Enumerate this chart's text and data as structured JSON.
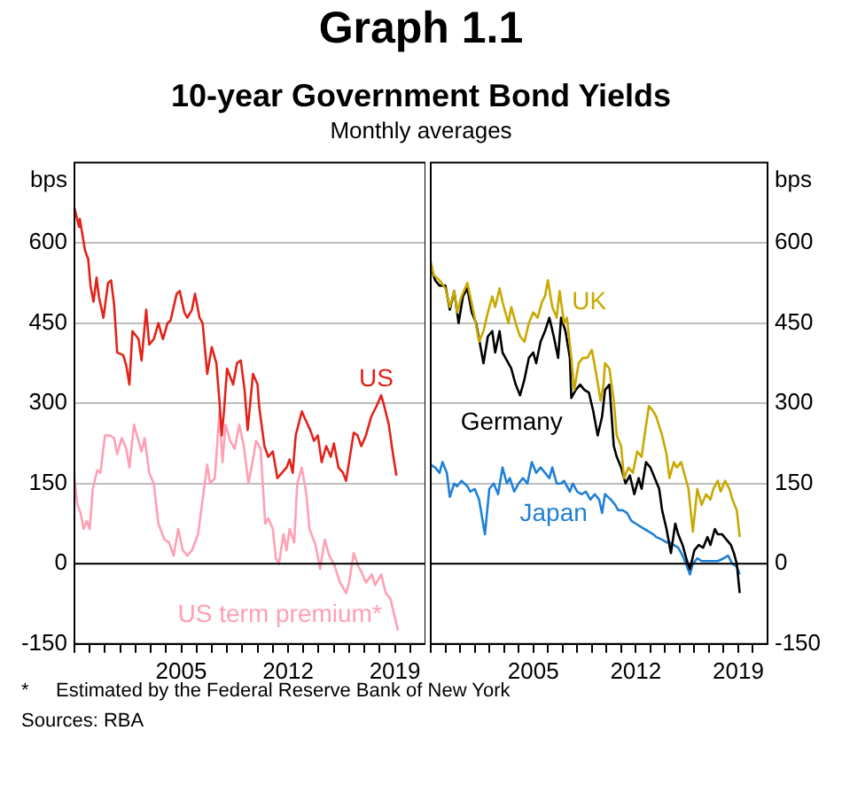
{
  "chart_data": [
    {
      "type": "line",
      "title": "Graph 1.1",
      "subtitle": "10-year Government Bond Yields",
      "ylabel": "bps",
      "xlim": [
        1998,
        2021
      ],
      "ylim": [
        -150,
        750
      ],
      "xticks": [
        {
          "value": 1998,
          "label": null
        },
        {
          "value": 1999,
          "label": null
        },
        {
          "value": 2000,
          "label": null
        },
        {
          "value": 2001,
          "label": null
        },
        {
          "value": 2002,
          "label": null
        },
        {
          "value": 2003,
          "label": null
        },
        {
          "value": 2004,
          "label": null
        },
        2005,
        {
          "value": 2006,
          "label": null
        },
        {
          "value": 2007,
          "label": null
        },
        {
          "value": 2008,
          "label": null
        },
        {
          "value": 2009,
          "label": null
        },
        {
          "value": 2010,
          "label": null
        },
        {
          "value": 2011,
          "label": null
        },
        2012,
        {
          "value": 2013,
          "label": null
        },
        {
          "value": 2014,
          "label": null
        },
        {
          "value": 2015,
          "label": null
        },
        {
          "value": 2016,
          "label": null
        },
        {
          "value": 2017,
          "label": null
        },
        {
          "value": 2018,
          "label": null
        },
        2019,
        {
          "value": 2020,
          "label": null
        }
      ],
      "yticks": [
        -150,
        0,
        150,
        300,
        450,
        600
      ],
      "grid": "y",
      "legend": false,
      "annotations": [
        "Monthly averages",
        "*     Estimated by the Federal Reserve Bank of New York",
        "Sources: RBA"
      ],
      "series": [
        {
          "name": "US",
          "color": "#e2231a",
          "x": [
            1998.0,
            1998.3,
            1998.35,
            1998.7,
            1998.9,
            1999.05,
            1999.25,
            1999.45,
            1999.6,
            1999.9,
            2000.2,
            2000.4,
            2000.6,
            2000.8,
            2001.2,
            2001.4,
            2001.6,
            2001.8,
            2002.2,
            2002.4,
            2002.7,
            2002.9,
            2003.2,
            2003.5,
            2003.8,
            2004.1,
            2004.3,
            2004.7,
            2004.9,
            2005.2,
            2005.4,
            2005.7,
            2005.9,
            2006.2,
            2006.4,
            2006.7,
            2007.0,
            2007.3,
            2007.5,
            2007.65,
            2007.8,
            2008.0,
            2008.4,
            2008.65,
            2008.9,
            2009.15,
            2009.35,
            2009.7,
            2010.0,
            2010.1,
            2010.45,
            2010.7,
            2011.0,
            2011.3,
            2011.6,
            2011.9,
            2012.1,
            2012.3,
            2012.5,
            2012.9,
            2013.05,
            2013.45,
            2013.7,
            2013.95,
            2014.2,
            2014.5,
            2014.8,
            2015.0,
            2015.3,
            2015.6,
            2015.8,
            2016.05,
            2016.3,
            2016.55,
            2016.8,
            2017.1,
            2017.45,
            2017.8,
            2018.1,
            2018.3,
            2018.6,
            2018.9,
            2019.1
          ],
          "values": [
            665,
            630,
            645,
            585,
            570,
            520,
            490,
            535,
            500,
            460,
            525,
            530,
            485,
            395,
            390,
            370,
            335,
            435,
            420,
            380,
            475,
            410,
            420,
            450,
            420,
            450,
            455,
            505,
            510,
            470,
            460,
            475,
            505,
            460,
            450,
            355,
            405,
            375,
            305,
            240,
            285,
            365,
            335,
            375,
            380,
            325,
            250,
            355,
            335,
            295,
            220,
            200,
            210,
            160,
            170,
            180,
            195,
            170,
            240,
            285,
            275,
            250,
            230,
            240,
            190,
            220,
            200,
            225,
            180,
            170,
            155,
            200,
            245,
            240,
            220,
            240,
            275,
            295,
            315,
            295,
            260,
            200,
            165
          ]
        },
        {
          "name": "US term premium*",
          "color": "#ffa0b4",
          "x": [
            1998.0,
            1998.2,
            1998.4,
            1998.6,
            1998.8,
            1999.0,
            1999.2,
            1999.5,
            1999.7,
            2000.0,
            2000.3,
            2000.6,
            2000.8,
            2001.1,
            2001.4,
            2001.6,
            2001.9,
            2002.2,
            2002.4,
            2002.6,
            2002.9,
            2003.2,
            2003.5,
            2003.9,
            2004.2,
            2004.5,
            2004.8,
            2005.1,
            2005.4,
            2005.7,
            2006.1,
            2006.4,
            2006.7,
            2006.9,
            2007.2,
            2007.5,
            2007.7,
            2007.9,
            2008.2,
            2008.5,
            2008.8,
            2009.1,
            2009.4,
            2009.7,
            2009.9,
            2010.2,
            2010.5,
            2010.7,
            2011.0,
            2011.2,
            2011.4,
            2011.7,
            2011.9,
            2012.1,
            2012.4,
            2012.6,
            2012.9,
            2013.2,
            2013.4,
            2013.8,
            2014.1,
            2014.4,
            2014.7,
            2015.0,
            2015.4,
            2015.8,
            2016.0,
            2016.3,
            2016.6,
            2016.8,
            2017.1,
            2017.5,
            2017.7,
            2018.1,
            2018.4,
            2018.7,
            2019.0,
            2019.2
          ],
          "values": [
            160,
            110,
            95,
            65,
            80,
            65,
            140,
            175,
            170,
            240,
            240,
            235,
            205,
            235,
            215,
            180,
            260,
            230,
            210,
            235,
            170,
            150,
            75,
            45,
            40,
            15,
            65,
            25,
            15,
            25,
            55,
            120,
            185,
            150,
            160,
            285,
            190,
            260,
            230,
            215,
            260,
            220,
            150,
            195,
            230,
            215,
            75,
            85,
            65,
            10,
            0,
            55,
            25,
            65,
            40,
            150,
            180,
            130,
            65,
            35,
            -10,
            45,
            15,
            0,
            -35,
            -55,
            -35,
            20,
            -5,
            -15,
            -35,
            -20,
            -40,
            -20,
            -55,
            -65,
            -100,
            -125
          ]
        }
      ]
    },
    {
      "type": "line",
      "ylabel": "bps",
      "xlim": [
        1998,
        2021
      ],
      "ylim": [
        -150,
        750
      ],
      "xticks": [
        {
          "value": 1998,
          "label": null
        },
        {
          "value": 1999,
          "label": null
        },
        {
          "value": 2000,
          "label": null
        },
        {
          "value": 2001,
          "label": null
        },
        {
          "value": 2002,
          "label": null
        },
        {
          "value": 2003,
          "label": null
        },
        {
          "value": 2004,
          "label": null
        },
        2005,
        {
          "value": 2006,
          "label": null
        },
        {
          "value": 2007,
          "label": null
        },
        {
          "value": 2008,
          "label": null
        },
        {
          "value": 2009,
          "label": null
        },
        {
          "value": 2010,
          "label": null
        },
        {
          "value": 2011,
          "label": null
        },
        2012,
        {
          "value": 2013,
          "label": null
        },
        {
          "value": 2014,
          "label": null
        },
        {
          "value": 2015,
          "label": null
        },
        {
          "value": 2016,
          "label": null
        },
        {
          "value": 2017,
          "label": null
        },
        {
          "value": 2018,
          "label": null
        },
        2019,
        {
          "value": 2020,
          "label": null
        }
      ],
      "yticks": [
        -150,
        0,
        150,
        300,
        450,
        600
      ],
      "grid": "y",
      "legend": false,
      "series": [
        {
          "name": "UK",
          "color": "#c9a800",
          "x": [
            1998.0,
            1998.2,
            1998.6,
            1999.0,
            1999.3,
            1999.6,
            1999.8,
            2000.1,
            2000.5,
            2000.7,
            2001.0,
            2001.3,
            2001.6,
            2001.9,
            2002.2,
            2002.4,
            2002.7,
            2002.9,
            2003.3,
            2003.5,
            2003.8,
            2004.1,
            2004.4,
            2004.7,
            2005.0,
            2005.3,
            2005.6,
            2005.8,
            2006.0,
            2006.3,
            2006.6,
            2006.8,
            2007.1,
            2007.3,
            2007.6,
            2007.8,
            2008.1,
            2008.4,
            2008.7,
            2009.0,
            2009.3,
            2009.6,
            2009.8,
            2009.9,
            2010.2,
            2010.5,
            2010.7,
            2011.0,
            2011.2,
            2011.5,
            2011.8,
            2012.1,
            2012.4,
            2012.6,
            2012.9,
            2013.2,
            2013.4,
            2013.8,
            2014.1,
            2014.3,
            2014.6,
            2014.8,
            2015.1,
            2015.4,
            2015.6,
            2015.9,
            2016.2,
            2016.5,
            2016.8,
            2017.1,
            2017.3,
            2017.6,
            2017.8,
            2018.1,
            2018.4,
            2018.6,
            2018.9,
            2019.1
          ],
          "values": [
            565,
            540,
            530,
            515,
            480,
            510,
            470,
            500,
            525,
            500,
            460,
            415,
            435,
            470,
            500,
            480,
            515,
            490,
            450,
            480,
            450,
            425,
            415,
            450,
            470,
            460,
            490,
            500,
            530,
            480,
            460,
            510,
            450,
            460,
            385,
            325,
            375,
            385,
            385,
            400,
            355,
            305,
            335,
            375,
            365,
            305,
            240,
            220,
            160,
            180,
            170,
            210,
            200,
            240,
            295,
            285,
            275,
            240,
            205,
            160,
            190,
            180,
            190,
            160,
            140,
            60,
            140,
            110,
            130,
            120,
            140,
            155,
            135,
            155,
            140,
            120,
            100,
            50
          ]
        },
        {
          "name": "Germany",
          "color": "#000000",
          "x": [
            1998.0,
            1998.3,
            1998.6,
            1999.0,
            1999.3,
            1999.6,
            1999.9,
            2000.2,
            2000.5,
            2000.8,
            2001.1,
            2001.4,
            2001.6,
            2001.9,
            2002.2,
            2002.4,
            2002.7,
            2002.9,
            2003.3,
            2003.5,
            2003.8,
            2004.1,
            2004.4,
            2004.7,
            2005.0,
            2005.2,
            2005.5,
            2005.8,
            2006.1,
            2006.4,
            2006.7,
            2006.9,
            2007.2,
            2007.5,
            2007.6,
            2007.9,
            2008.2,
            2008.5,
            2008.8,
            2009.1,
            2009.4,
            2009.7,
            2009.9,
            2010.2,
            2010.5,
            2010.7,
            2011.0,
            2011.3,
            2011.6,
            2011.9,
            2012.2,
            2012.4,
            2012.7,
            2013.0,
            2013.3,
            2013.6,
            2013.8,
            2014.1,
            2014.4,
            2014.7,
            2014.9,
            2015.2,
            2015.5,
            2015.7,
            2016.0,
            2016.3,
            2016.6,
            2016.9,
            2017.1,
            2017.4,
            2017.6,
            2017.9,
            2018.2,
            2018.5,
            2018.7,
            2018.9,
            2019.1
          ],
          "values": [
            555,
            530,
            520,
            520,
            475,
            510,
            450,
            500,
            515,
            470,
            450,
            405,
            375,
            425,
            435,
            395,
            435,
            395,
            375,
            365,
            335,
            315,
            345,
            385,
            395,
            375,
            415,
            435,
            460,
            425,
            385,
            460,
            435,
            385,
            310,
            325,
            335,
            325,
            320,
            285,
            240,
            275,
            325,
            335,
            220,
            200,
            180,
            150,
            165,
            130,
            160,
            140,
            190,
            180,
            160,
            140,
            100,
            65,
            20,
            75,
            55,
            35,
            5,
            -10,
            25,
            35,
            30,
            50,
            35,
            65,
            55,
            55,
            45,
            35,
            20,
            0,
            -55
          ]
        },
        {
          "name": "Japan",
          "color": "#1f80d8",
          "x": [
            1998.0,
            1998.3,
            1998.6,
            1998.8,
            1999.1,
            1999.3,
            1999.6,
            1999.8,
            2000.1,
            2000.5,
            2000.7,
            2001.0,
            2001.3,
            2001.7,
            2002.0,
            2002.3,
            2002.6,
            2002.9,
            2003.2,
            2003.4,
            2003.7,
            2004.0,
            2004.3,
            2004.6,
            2004.9,
            2005.2,
            2005.5,
            2005.8,
            2006.1,
            2006.3,
            2006.6,
            2006.9,
            2007.1,
            2007.5,
            2007.7,
            2008.0,
            2008.3,
            2008.6,
            2008.9,
            2009.2,
            2009.5,
            2009.7,
            2009.9,
            2010.3,
            2010.6,
            2010.8,
            2011.1,
            2011.4,
            2011.7,
            2012.0,
            2012.3,
            2012.6,
            2012.9,
            2013.2,
            2013.4,
            2013.8,
            2014.1,
            2014.3,
            2014.6,
            2014.9,
            2015.2,
            2015.5,
            2015.7,
            2015.9,
            2016.2,
            2016.5,
            2016.9,
            2017.3,
            2017.6,
            2018.0,
            2018.3,
            2018.6,
            2018.9,
            2019.1
          ],
          "values": [
            185,
            180,
            170,
            190,
            170,
            125,
            150,
            145,
            155,
            145,
            135,
            140,
            120,
            55,
            140,
            150,
            130,
            180,
            150,
            160,
            135,
            150,
            160,
            150,
            190,
            170,
            180,
            170,
            160,
            180,
            150,
            150,
            155,
            135,
            150,
            135,
            130,
            135,
            120,
            130,
            120,
            95,
            130,
            120,
            110,
            100,
            100,
            95,
            80,
            75,
            70,
            65,
            60,
            55,
            50,
            45,
            40,
            40,
            35,
            30,
            15,
            -5,
            -20,
            0,
            10,
            5,
            5,
            5,
            5,
            10,
            15,
            0,
            -5,
            -20
          ]
        }
      ]
    }
  ]
}
